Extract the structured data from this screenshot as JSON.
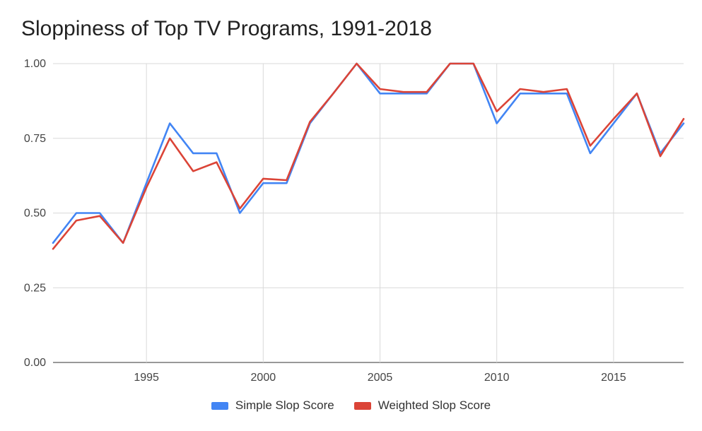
{
  "chart_data": {
    "type": "line",
    "title": "Sloppiness of Top TV Programs, 1991-2018",
    "xlabel": "",
    "ylabel": "",
    "x": [
      1991,
      1992,
      1993,
      1994,
      1995,
      1996,
      1997,
      1998,
      1999,
      2000,
      2001,
      2002,
      2003,
      2004,
      2005,
      2006,
      2007,
      2008,
      2009,
      2010,
      2011,
      2012,
      2013,
      2014,
      2015,
      2016,
      2017,
      2018
    ],
    "xlim": [
      1991,
      2018
    ],
    "ylim": [
      0,
      1
    ],
    "x_ticks": [
      1995,
      2000,
      2005,
      2010,
      2015
    ],
    "x_tick_labels": [
      "1995",
      "2000",
      "2005",
      "2010",
      "2015"
    ],
    "y_ticks": [
      0,
      0.25,
      0.5,
      0.75,
      1.0
    ],
    "y_tick_labels": [
      "0.00",
      "0.25",
      "0.50",
      "0.75",
      "1.00"
    ],
    "grid": true,
    "legend_position": "bottom",
    "series": [
      {
        "name": "Simple Slop Score",
        "color": "#4285f4",
        "values": [
          0.4,
          0.5,
          0.5,
          0.4,
          0.6,
          0.8,
          0.7,
          0.7,
          0.5,
          0.6,
          0.6,
          0.8,
          0.9,
          1.0,
          0.9,
          0.9,
          0.9,
          1.0,
          1.0,
          0.8,
          0.9,
          0.9,
          0.9,
          0.7,
          0.8,
          0.9,
          0.7,
          0.8
        ]
      },
      {
        "name": "Weighted Slop Score",
        "color": "#db4437",
        "values": [
          0.38,
          0.475,
          0.49,
          0.4,
          0.585,
          0.75,
          0.64,
          0.67,
          0.515,
          0.615,
          0.61,
          0.805,
          0.9,
          1.0,
          0.915,
          0.905,
          0.905,
          1.0,
          1.0,
          0.84,
          0.915,
          0.905,
          0.915,
          0.725,
          0.815,
          0.9,
          0.69,
          0.815
        ]
      }
    ]
  }
}
